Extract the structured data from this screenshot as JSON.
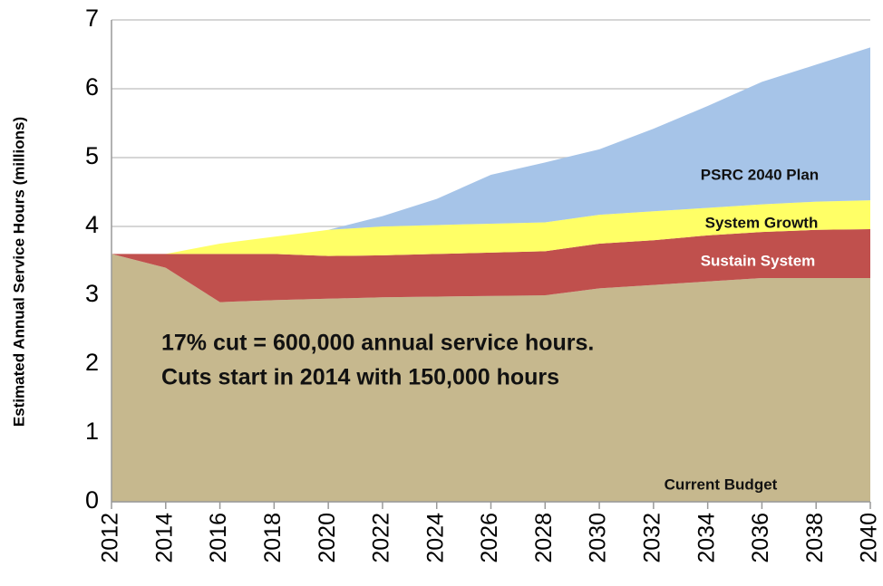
{
  "chart_data": {
    "type": "stacked-area",
    "y_label": "Estimated Annual Service Hours (millions)",
    "annotations": [
      "17% cut = 600,000 annual service hours.",
      "Cuts start in 2014 with 150,000 hours"
    ],
    "x": [
      2012,
      2014,
      2016,
      2018,
      2020,
      2022,
      2024,
      2026,
      2028,
      2030,
      2032,
      2034,
      2036,
      2038,
      2040
    ],
    "xlim": [
      2012,
      2040
    ],
    "xticks": [
      2012,
      2014,
      2016,
      2018,
      2020,
      2022,
      2024,
      2026,
      2028,
      2030,
      2032,
      2034,
      2036,
      2038,
      2040
    ],
    "ylim": [
      0,
      7
    ],
    "yticks": [
      0,
      1,
      2,
      3,
      4,
      5,
      6,
      7
    ],
    "grid": true,
    "series": [
      {
        "name": "Current Budget",
        "color": "#c6b88e",
        "values": [
          3.6,
          3.4,
          2.9,
          2.93,
          2.95,
          2.97,
          2.98,
          2.99,
          3.0,
          3.1,
          3.15,
          3.2,
          3.25,
          3.25,
          3.25
        ]
      },
      {
        "name": "Sustain System",
        "color": "#c0504d",
        "values": [
          0,
          0.2,
          0.7,
          0.67,
          0.62,
          0.61,
          0.62,
          0.63,
          0.64,
          0.65,
          0.65,
          0.67,
          0.67,
          0.7,
          0.71
        ]
      },
      {
        "name": "System Growth",
        "color": "#ffff66",
        "values": [
          0,
          0,
          0.15,
          0.25,
          0.38,
          0.42,
          0.42,
          0.42,
          0.42,
          0.42,
          0.42,
          0.4,
          0.4,
          0.41,
          0.42
        ]
      },
      {
        "name": "PSRC 2040 Plan",
        "color": "#a6c4e8",
        "values": [
          0,
          0,
          0,
          0,
          0,
          0.15,
          0.38,
          0.71,
          0.87,
          0.95,
          1.2,
          1.48,
          1.78,
          1.99,
          2.22
        ]
      }
    ]
  }
}
